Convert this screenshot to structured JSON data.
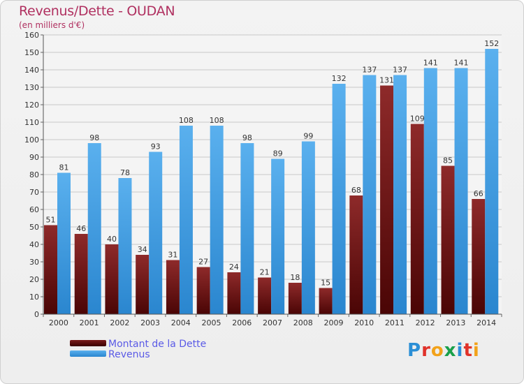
{
  "title": "Revenus/Dette - OUDAN",
  "subtitle": "(en milliers d'€)",
  "logo": {
    "text": "Proxiti",
    "colors": [
      "#2b8fd6",
      "#e0322a",
      "#f2a21a",
      "#1aa04a",
      "#2b8fd6",
      "#e0322a",
      "#f2a21a"
    ]
  },
  "legend": {
    "dette_label": "Montant de la Dette",
    "revenus_label": "Revenus"
  },
  "chart_data": {
    "type": "bar",
    "title": "Revenus/Dette - OUDAN",
    "subtitle": "(en milliers d'€)",
    "xlabel": "",
    "ylabel": "",
    "ylim": [
      0,
      160
    ],
    "yticks": [
      0,
      10,
      20,
      30,
      40,
      50,
      60,
      70,
      80,
      90,
      100,
      110,
      120,
      130,
      140,
      150,
      160
    ],
    "grid": true,
    "legend_position": "bottom-left",
    "categories": [
      "2000",
      "2001",
      "2002",
      "2003",
      "2004",
      "2005",
      "2006",
      "2007",
      "2008",
      "2009",
      "2010",
      "2011",
      "2012",
      "2013",
      "2014"
    ],
    "series": [
      {
        "name": "Montant de la Dette",
        "color": "#7a1a1a",
        "values": [
          51,
          46,
          40,
          34,
          31,
          27,
          24,
          21,
          18,
          15,
          68,
          131,
          109,
          85,
          66
        ]
      },
      {
        "name": "Revenus",
        "color": "#3f9fe6",
        "values": [
          81,
          98,
          78,
          93,
          108,
          108,
          98,
          89,
          99,
          132,
          137,
          137,
          141,
          141,
          152
        ]
      }
    ]
  }
}
